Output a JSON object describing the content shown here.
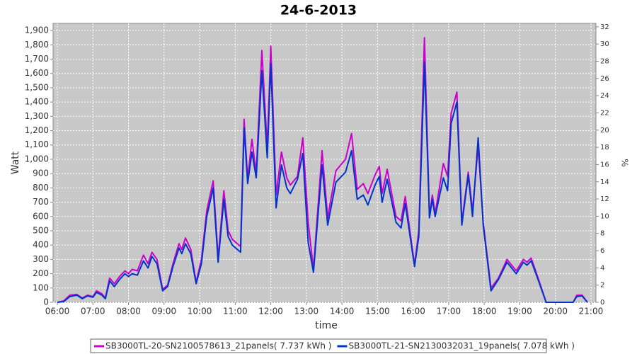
{
  "chart_data": {
    "type": "line",
    "title": "24-6-2013",
    "xlabel": "time",
    "ylabel": "Watt",
    "y2label": "%",
    "x": [
      6.0,
      6.18,
      6.35,
      6.55,
      6.7,
      6.85,
      7.0,
      7.1,
      7.25,
      7.35,
      7.47,
      7.6,
      7.75,
      7.9,
      8.0,
      8.1,
      8.25,
      8.42,
      8.55,
      8.66,
      8.8,
      8.96,
      9.1,
      9.25,
      9.42,
      9.5,
      9.6,
      9.75,
      9.9,
      10.05,
      10.2,
      10.38,
      10.52,
      10.68,
      10.8,
      10.92,
      11.15,
      11.25,
      11.35,
      11.47,
      11.59,
      11.75,
      11.9,
      12.0,
      12.15,
      12.3,
      12.45,
      12.55,
      12.75,
      12.9,
      13.05,
      13.2,
      13.44,
      13.6,
      13.83,
      14.1,
      14.27,
      14.43,
      14.6,
      14.73,
      14.93,
      15.05,
      15.13,
      15.27,
      15.52,
      15.66,
      15.78,
      16.04,
      16.16,
      16.32,
      16.46,
      16.54,
      16.62,
      16.85,
      16.97,
      17.07,
      17.23,
      17.37,
      17.55,
      17.67,
      17.83,
      17.97,
      18.19,
      18.4,
      18.64,
      18.9,
      19.1,
      19.2,
      19.32,
      19.54,
      19.74,
      20.5,
      20.6,
      20.75,
      20.9
    ],
    "series": [
      {
        "name": "SB3000TL-20-SN2100578613_21panels( 7.737 kWh )",
        "color": "#cc00cc",
        "values": [
          0,
          10,
          50,
          55,
          30,
          50,
          40,
          80,
          60,
          30,
          170,
          130,
          180,
          220,
          200,
          230,
          220,
          330,
          270,
          350,
          300,
          90,
          120,
          270,
          410,
          370,
          450,
          370,
          140,
          300,
          640,
          850,
          310,
          780,
          500,
          440,
          390,
          1280,
          860,
          1140,
          900,
          1760,
          1080,
          1790,
          750,
          1050,
          870,
          820,
          880,
          1150,
          560,
          230,
          1060,
          590,
          920,
          1000,
          1180,
          790,
          830,
          760,
          890,
          950,
          760,
          930,
          600,
          570,
          740,
          260,
          500,
          1850,
          600,
          750,
          620,
          970,
          880,
          1320,
          1470,
          560,
          910,
          640,
          1090,
          560,
          100,
          170,
          300,
          220,
          300,
          280,
          310,
          150,
          0,
          0,
          50,
          50,
          0
        ]
      },
      {
        "name": "SB3000TL-21-SN2130032031_19panels( 7.078 kWh )",
        "color": "#0033cc",
        "values": [
          0,
          5,
          40,
          50,
          25,
          45,
          35,
          70,
          50,
          25,
          150,
          110,
          160,
          200,
          180,
          200,
          190,
          290,
          240,
          320,
          270,
          80,
          110,
          250,
          380,
          340,
          410,
          340,
          130,
          270,
          600,
          800,
          280,
          720,
          460,
          400,
          350,
          1220,
          830,
          1050,
          870,
          1620,
          1010,
          1670,
          660,
          960,
          800,
          760,
          860,
          1040,
          420,
          210,
          960,
          540,
          840,
          910,
          1060,
          720,
          750,
          680,
          820,
          880,
          700,
          860,
          560,
          520,
          690,
          250,
          460,
          1680,
          590,
          720,
          600,
          870,
          780,
          1250,
          1400,
          540,
          890,
          600,
          1150,
          540,
          80,
          160,
          280,
          200,
          280,
          260,
          290,
          140,
          0,
          0,
          40,
          45,
          0
        ]
      }
    ],
    "xlim": [
      5.88,
      21.14
    ],
    "xticks": [
      {
        "value": 6,
        "label": "06:00"
      },
      {
        "value": 7,
        "label": "07:00"
      },
      {
        "value": 8,
        "label": "08:00"
      },
      {
        "value": 9,
        "label": "09:00"
      },
      {
        "value": 10,
        "label": "10:00"
      },
      {
        "value": 11,
        "label": "11:00"
      },
      {
        "value": 12,
        "label": "12:00"
      },
      {
        "value": 13,
        "label": "13:00"
      },
      {
        "value": 14,
        "label": "14:00"
      },
      {
        "value": 15,
        "label": "15:00"
      },
      {
        "value": 16,
        "label": "16:00"
      },
      {
        "value": 17,
        "label": "17:00"
      },
      {
        "value": 18,
        "label": "18:00"
      },
      {
        "value": 19,
        "label": "19:00"
      },
      {
        "value": 20,
        "label": "20:00"
      },
      {
        "value": 21,
        "label": "21:00"
      }
    ],
    "ylim": [
      0,
      1950
    ],
    "yticks": [
      0,
      100,
      200,
      300,
      400,
      500,
      600,
      700,
      800,
      900,
      {
        "value": 1000,
        "label": "1,000"
      },
      {
        "value": 1100,
        "label": "1,100"
      },
      {
        "value": 1200,
        "label": "1,200"
      },
      {
        "value": 1300,
        "label": "1,300"
      },
      {
        "value": 1400,
        "label": "1,400"
      },
      {
        "value": 1500,
        "label": "1,500"
      },
      {
        "value": 1600,
        "label": "1,600"
      },
      {
        "value": 1700,
        "label": "1,700"
      },
      {
        "value": 1800,
        "label": "1,800"
      },
      {
        "value": 1900,
        "label": "1,900"
      }
    ],
    "y2lim": [
      0,
      32.4
    ],
    "y2ticks": [
      0,
      2,
      4,
      6,
      8,
      10,
      12,
      14,
      16,
      18,
      20,
      22,
      24,
      26,
      28,
      30,
      32
    ],
    "grid": true,
    "legend": "bottom"
  }
}
